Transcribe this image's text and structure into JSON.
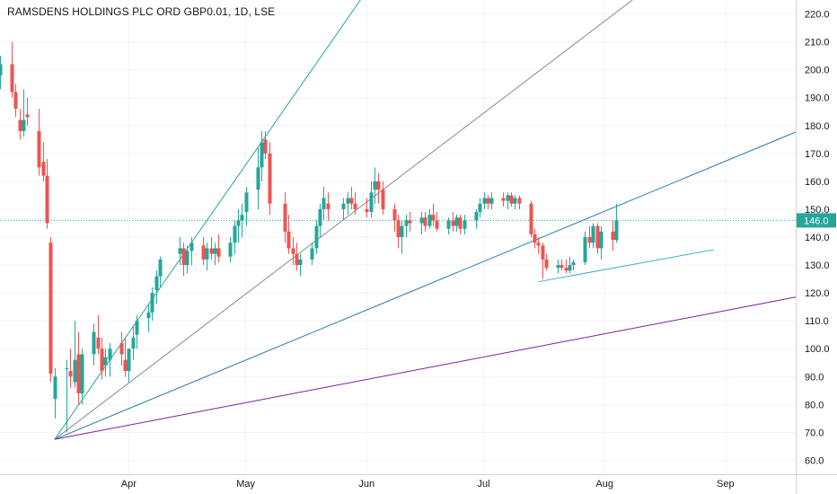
{
  "header": {
    "title": "RAMSDENS HOLDINGS PLC ORD GBP0.01, 1D, LSE"
  },
  "chart_data": {
    "type": "candlestick",
    "title": "RAMSDENS HOLDINGS PLC ORD GBP0.01, 1D, LSE",
    "ylim": [
      55,
      225
    ],
    "y_ticks": [
      "60.0",
      "70.0",
      "80.0",
      "90.0",
      "100.0",
      "110.0",
      "120.0",
      "130.0",
      "140.0",
      "150.0",
      "160.0",
      "170.0",
      "180.0",
      "190.0",
      "200.0",
      "210.0",
      "220.0"
    ],
    "x_ticks": [
      {
        "label": "Apr",
        "date": "2020-04-01"
      },
      {
        "label": "May",
        "date": "2020-05-01"
      },
      {
        "label": "Jun",
        "date": "2020-06-01"
      },
      {
        "label": "Jul",
        "date": "2020-07-01"
      },
      {
        "label": "Aug",
        "date": "2020-08-01"
      },
      {
        "label": "Sep",
        "date": "2020-09-01"
      }
    ],
    "xlim": [
      "2020-02-28",
      "2020-09-19"
    ],
    "last_price": "146.0",
    "colors": {
      "up": "#26a69a",
      "down": "#ef5350",
      "grid": "#f0f3fa",
      "axis_text": "#131722",
      "price_line": "#26a69a",
      "fan_green": "#26a69a",
      "fan_gray": "#8a8a8a",
      "fan_blue": "#2a7bb0",
      "fan_purple": "#7b1fa2",
      "support": "#40b0c8"
    },
    "candles": [
      [
        "2020-02-28",
        198,
        205,
        193,
        202
      ],
      [
        "2020-03-02",
        202,
        210,
        190,
        192
      ],
      [
        "2020-03-03",
        192,
        195,
        183,
        186
      ],
      [
        "2020-03-04",
        182,
        186,
        175,
        178
      ],
      [
        "2020-03-05",
        178,
        193,
        176,
        182
      ],
      [
        "2020-03-06",
        184,
        190,
        180,
        183
      ],
      [
        "2020-03-09",
        178,
        186,
        162,
        165
      ],
      [
        "2020-03-10",
        167,
        174,
        160,
        162
      ],
      [
        "2020-03-11",
        162,
        168,
        143,
        145
      ],
      [
        "2020-03-12",
        138,
        140,
        88,
        91
      ],
      [
        "2020-03-13",
        82,
        93,
        75,
        90
      ],
      [
        "2020-03-16",
        93,
        96,
        70,
        93
      ],
      [
        "2020-03-17",
        92,
        100,
        86,
        90
      ],
      [
        "2020-03-18",
        88,
        110,
        86,
        96
      ],
      [
        "2020-03-19",
        98,
        106,
        80,
        84
      ],
      [
        "2020-03-20",
        84,
        100,
        80,
        98
      ],
      [
        "2020-03-23",
        98,
        109,
        94,
        106
      ],
      [
        "2020-03-24",
        104,
        112,
        98,
        100
      ],
      [
        "2020-03-25",
        100,
        104,
        89,
        92
      ],
      [
        "2020-03-26",
        94,
        100,
        90,
        97
      ],
      [
        "2020-03-27",
        96,
        102,
        90,
        100
      ],
      [
        "2020-03-30",
        102,
        106,
        94,
        98
      ],
      [
        "2020-03-31",
        96,
        104,
        90,
        92
      ],
      [
        "2020-04-01",
        92,
        100,
        88,
        100
      ],
      [
        "2020-04-02",
        100,
        108,
        96,
        104
      ],
      [
        "2020-04-03",
        105,
        112,
        100,
        110
      ],
      [
        "2020-04-06",
        111,
        116,
        106,
        113
      ],
      [
        "2020-04-07",
        113,
        122,
        110,
        120
      ],
      [
        "2020-04-08",
        121,
        128,
        116,
        126
      ],
      [
        "2020-04-09",
        126,
        133,
        122,
        132
      ],
      [
        "2020-04-14",
        134,
        140,
        130,
        136
      ],
      [
        "2020-04-15",
        136,
        138,
        126,
        130
      ],
      [
        "2020-04-16",
        130,
        137,
        127,
        135
      ],
      [
        "2020-04-17",
        135,
        140,
        130,
        138
      ],
      [
        "2020-04-20",
        137,
        140,
        130,
        132
      ],
      [
        "2020-04-21",
        132,
        138,
        128,
        136
      ],
      [
        "2020-04-22",
        136,
        140,
        132,
        134
      ],
      [
        "2020-04-23",
        134,
        138,
        130,
        136
      ],
      [
        "2020-04-24",
        136,
        141,
        131,
        133
      ],
      [
        "2020-04-27",
        133,
        140,
        131,
        138
      ],
      [
        "2020-04-28",
        138,
        146,
        134,
        144
      ],
      [
        "2020-04-29",
        144,
        150,
        138,
        146
      ],
      [
        "2020-04-30",
        146,
        152,
        140,
        148
      ],
      [
        "2020-05-01",
        149,
        158,
        144,
        156
      ],
      [
        "2020-05-04",
        157,
        172,
        150,
        165
      ],
      [
        "2020-05-05",
        165,
        178,
        160,
        174
      ],
      [
        "2020-05-06",
        175,
        178,
        168,
        170
      ],
      [
        "2020-05-07",
        170,
        174,
        148,
        152
      ],
      [
        "2020-05-11",
        152,
        156,
        138,
        142
      ],
      [
        "2020-05-12",
        142,
        148,
        134,
        136
      ],
      [
        "2020-05-13",
        136,
        140,
        130,
        134
      ],
      [
        "2020-05-14",
        134,
        138,
        128,
        130
      ],
      [
        "2020-05-15",
        130,
        134,
        126,
        132
      ],
      [
        "2020-05-18",
        132,
        138,
        130,
        136
      ],
      [
        "2020-05-19",
        136,
        146,
        134,
        144
      ],
      [
        "2020-05-20",
        144,
        152,
        140,
        150
      ],
      [
        "2020-05-21",
        150,
        158,
        146,
        154
      ],
      [
        "2020-05-22",
        152,
        156,
        146,
        150
      ],
      [
        "2020-05-26",
        150,
        154,
        146,
        152
      ],
      [
        "2020-05-27",
        152,
        156,
        148,
        154
      ],
      [
        "2020-05-28",
        154,
        158,
        150,
        152
      ],
      [
        "2020-05-29",
        152,
        156,
        148,
        150
      ],
      [
        "2020-06-01",
        150,
        154,
        147,
        149
      ],
      [
        "2020-06-02",
        149,
        160,
        147,
        156
      ],
      [
        "2020-06-03",
        157,
        165,
        152,
        160
      ],
      [
        "2020-06-04",
        160,
        163,
        152,
        157
      ],
      [
        "2020-06-05",
        157,
        160,
        148,
        150
      ],
      [
        "2020-06-08",
        150,
        152,
        142,
        146
      ],
      [
        "2020-06-09",
        146,
        148,
        136,
        140
      ],
      [
        "2020-06-10",
        140,
        146,
        134,
        144
      ],
      [
        "2020-06-11",
        144,
        148,
        140,
        146
      ],
      [
        "2020-06-12",
        146,
        149,
        142,
        145
      ],
      [
        "2020-06-15",
        145,
        149,
        141,
        147
      ],
      [
        "2020-06-16",
        147,
        149,
        142,
        144
      ],
      [
        "2020-06-17",
        144,
        150,
        143,
        148
      ],
      [
        "2020-06-18",
        148,
        152,
        144,
        146
      ],
      [
        "2020-06-19",
        146,
        149,
        142,
        143
      ],
      [
        "2020-06-22",
        143,
        147,
        141,
        146
      ],
      [
        "2020-06-23",
        146,
        149,
        142,
        144
      ],
      [
        "2020-06-24",
        144,
        148,
        142,
        147
      ],
      [
        "2020-06-25",
        147,
        148,
        141,
        143
      ],
      [
        "2020-06-26",
        143,
        148,
        141,
        146
      ],
      [
        "2020-06-29",
        146,
        150,
        143,
        149
      ],
      [
        "2020-06-30",
        149,
        154,
        147,
        152
      ],
      [
        "2020-07-01",
        152,
        156,
        150,
        154
      ],
      [
        "2020-07-02",
        154,
        155,
        150,
        152
      ],
      [
        "2020-07-03",
        152,
        156,
        150,
        154
      ],
      [
        "2020-07-06",
        154,
        156,
        151,
        153
      ],
      [
        "2020-07-07",
        153,
        156,
        150,
        155
      ],
      [
        "2020-07-08",
        155,
        156,
        151,
        152
      ],
      [
        "2020-07-09",
        152,
        155,
        150,
        154
      ],
      [
        "2020-07-10",
        154,
        155,
        150,
        152
      ],
      [
        "2020-07-13",
        152,
        153,
        140,
        141
      ],
      [
        "2020-07-14",
        141,
        143,
        136,
        138
      ],
      [
        "2020-07-15",
        138,
        140,
        134,
        137
      ],
      [
        "2020-07-16",
        137,
        138,
        125,
        132
      ],
      [
        "2020-07-17",
        132,
        134,
        128,
        129
      ],
      [
        "2020-07-20",
        129,
        132,
        127,
        130
      ],
      [
        "2020-07-21",
        130,
        132,
        128,
        129
      ],
      [
        "2020-07-22",
        129,
        132,
        127,
        128
      ],
      [
        "2020-07-23",
        128,
        133,
        127,
        130
      ],
      [
        "2020-07-24",
        130,
        132,
        128,
        131
      ],
      [
        "2020-07-27",
        131,
        142,
        130,
        140
      ],
      [
        "2020-07-28",
        140,
        144,
        136,
        138
      ],
      [
        "2020-07-29",
        138,
        145,
        136,
        144
      ],
      [
        "2020-07-30",
        144,
        145,
        134,
        136
      ],
      [
        "2020-07-31",
        136,
        144,
        132,
        142
      ],
      [
        "2020-08-03",
        142,
        146,
        135,
        139
      ],
      [
        "2020-08-04",
        139,
        152,
        138,
        146
      ]
    ],
    "fan_lines": [
      {
        "color_key": "fan_green",
        "from": [
          "2020-03-13",
          67.5
        ],
        "to": [
          "2020-05-07",
          178
        ]
      },
      {
        "color_key": "fan_gray",
        "from": [
          "2020-03-13",
          67.5
        ],
        "to": [
          "2020-06-08",
          160
        ]
      },
      {
        "color_key": "fan_blue",
        "from": [
          "2020-03-13",
          67.5
        ],
        "to": [
          "2020-08-04",
          151
        ]
      },
      {
        "color_key": "fan_purple",
        "from": [
          "2020-03-13",
          67.5
        ],
        "to": [
          "2020-09-19",
          118.5
        ]
      },
      {
        "color_key": "support",
        "from": [
          "2020-07-15",
          124
        ],
        "to": [
          "2020-08-29",
          135.5
        ],
        "segment": true
      }
    ]
  }
}
